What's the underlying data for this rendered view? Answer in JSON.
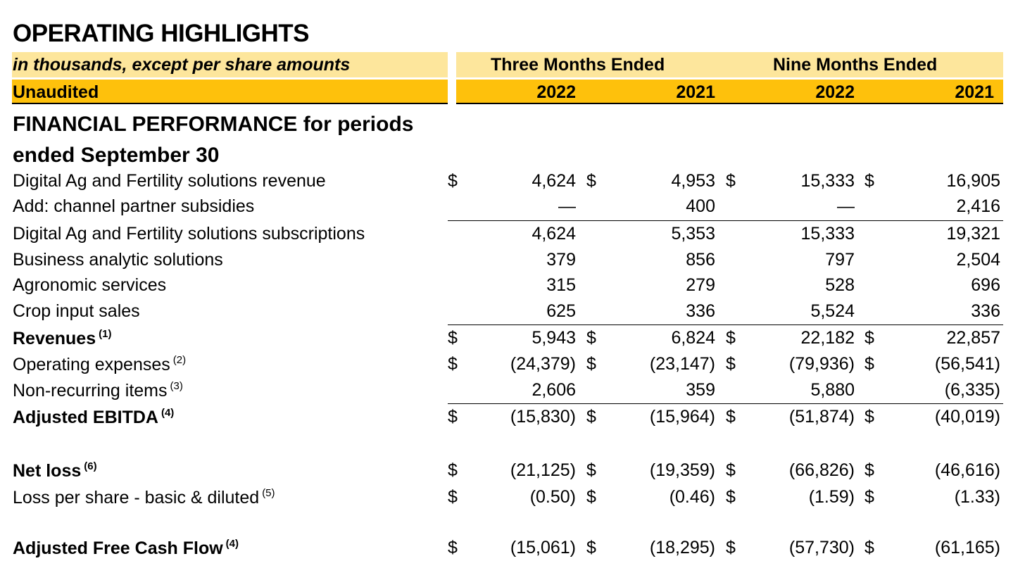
{
  "title": "OPERATING HIGHLIGHTS",
  "header": {
    "units": "in thousands, except per share amounts",
    "three_months": "Three Months Ended",
    "nine_months": "Nine Months Ended",
    "audit": "Unaudited",
    "years": [
      "2022",
      "2021",
      "2022",
      "2021"
    ]
  },
  "section_title": "FINANCIAL PERFORMANCE for periods ended September 30",
  "rows": [
    {
      "label": "Digital Ag and Fertility solutions revenue",
      "note": "",
      "bold": false,
      "currency": true,
      "values": [
        "4,624",
        "4,953",
        "15,333",
        "16,905"
      ]
    },
    {
      "label": "Add: channel partner subsidies",
      "note": "",
      "bold": false,
      "currency": false,
      "values": [
        "—",
        "400",
        "—",
        "2,416"
      ]
    },
    {
      "label": "Digital Ag and Fertility solutions subscriptions",
      "note": "",
      "bold": false,
      "currency": false,
      "values": [
        "4,624",
        "5,353",
        "15,333",
        "19,321"
      ]
    },
    {
      "label": "Business analytic solutions",
      "note": "",
      "bold": false,
      "currency": false,
      "values": [
        "379",
        "856",
        "797",
        "2,504"
      ]
    },
    {
      "label": "Agronomic services",
      "note": "",
      "bold": false,
      "currency": false,
      "values": [
        "315",
        "279",
        "528",
        "696"
      ]
    },
    {
      "label": "Crop input sales",
      "note": "",
      "bold": false,
      "currency": false,
      "values": [
        "625",
        "336",
        "5,524",
        "336"
      ]
    },
    {
      "label": "Revenues",
      "note": "(1)",
      "bold": true,
      "currency": true,
      "values": [
        "5,943",
        "6,824",
        "22,182",
        "22,857"
      ]
    },
    {
      "label": "Operating expenses",
      "note": "(2)",
      "bold": false,
      "currency": true,
      "values": [
        "(24,379)",
        "(23,147)",
        "(79,936)",
        "(56,541)"
      ]
    },
    {
      "label": "Non-recurring items",
      "note": "(3)",
      "bold": false,
      "currency": false,
      "values": [
        "2,606",
        "359",
        "5,880",
        "(6,335)"
      ]
    },
    {
      "label": "Adjusted EBITDA",
      "note": "(4)",
      "bold": true,
      "currency": true,
      "values": [
        "(15,830)",
        "(15,964)",
        "(51,874)",
        "(40,019)"
      ]
    },
    {
      "label": "Net loss",
      "note": "(6)",
      "bold": true,
      "currency": true,
      "values": [
        "(21,125)",
        "(19,359)",
        "(66,826)",
        "(46,616)"
      ]
    },
    {
      "label": "Loss per share - basic & diluted",
      "note": "(5)",
      "bold": false,
      "currency": true,
      "values": [
        "(0.50)",
        "(0.46)",
        "(1.59)",
        "(1.33)"
      ]
    },
    {
      "label": "Adjusted Free Cash Flow",
      "note": "(4)",
      "bold": true,
      "currency": true,
      "values": [
        "(15,061)",
        "(18,295)",
        "(57,730)",
        "(61,165)"
      ]
    }
  ],
  "currency_symbol": "$",
  "colors": {
    "light_band": "#fde69c",
    "dark_band": "#fec10c"
  }
}
